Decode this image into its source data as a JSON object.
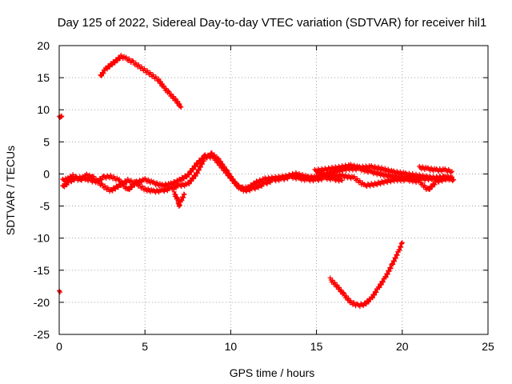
{
  "chart_data": {
    "type": "scatter",
    "title": "Day 125 of 2022, Sidereal Day-to-day VTEC variation (SDTVAR) for receiver hil1",
    "xlabel": "GPS time / hours",
    "ylabel": "SDTVAR / TECUs",
    "xlim": [
      0,
      25
    ],
    "ylim": [
      -25,
      20
    ],
    "xticks": [
      0,
      5,
      10,
      15,
      20,
      25
    ],
    "yticks": [
      -25,
      -20,
      -15,
      -10,
      -5,
      0,
      5,
      10,
      15,
      20
    ],
    "grid": true,
    "marker": "+",
    "color": "#ff0000",
    "series": [
      {
        "name": "arc-early-isolated",
        "points": [
          [
            0.0,
            8.8
          ],
          [
            0.1,
            8.8
          ],
          [
            0.15,
            9.0
          ]
        ]
      },
      {
        "name": "arc-isolated-low",
        "points": [
          [
            0.0,
            -18.4
          ],
          [
            0.05,
            -18.4
          ]
        ]
      },
      {
        "name": "arc-high",
        "points": [
          [
            2.4,
            15.2
          ],
          [
            2.7,
            16.3
          ],
          [
            3.0,
            17.0
          ],
          [
            3.3,
            17.6
          ],
          [
            3.6,
            18.3
          ],
          [
            3.9,
            18.0
          ],
          [
            4.3,
            17.4
          ],
          [
            4.8,
            16.5
          ],
          [
            5.3,
            15.6
          ],
          [
            5.8,
            14.6
          ],
          [
            6.1,
            13.5
          ],
          [
            6.4,
            12.6
          ],
          [
            6.8,
            11.5
          ],
          [
            7.1,
            10.4
          ]
        ]
      },
      {
        "name": "arc-main-1",
        "points": [
          [
            0.2,
            -1.0
          ],
          [
            0.5,
            -0.8
          ],
          [
            0.8,
            -0.3
          ],
          [
            1.2,
            -1.0
          ],
          [
            1.6,
            -0.2
          ],
          [
            2.0,
            -0.6
          ],
          [
            2.5,
            -1.8
          ],
          [
            3.0,
            -2.6
          ],
          [
            3.5,
            -1.8
          ],
          [
            4.0,
            -1.0
          ],
          [
            4.5,
            -1.5
          ],
          [
            5.0,
            -2.4
          ],
          [
            5.5,
            -2.7
          ],
          [
            6.0,
            -2.6
          ],
          [
            6.5,
            -2.3
          ],
          [
            7.0,
            -1.8
          ],
          [
            7.5,
            -1.6
          ],
          [
            8.0,
            0.0
          ],
          [
            8.5,
            2.5
          ],
          [
            8.9,
            3.1
          ],
          [
            9.3,
            2.2
          ],
          [
            9.8,
            0.3
          ],
          [
            10.3,
            -1.6
          ],
          [
            10.8,
            -2.6
          ],
          [
            11.3,
            -2.3
          ],
          [
            12.0,
            -1.5
          ],
          [
            12.5,
            -0.9
          ],
          [
            13.0,
            -0.8
          ],
          [
            13.5,
            -0.4
          ],
          [
            14.0,
            -0.7
          ],
          [
            14.5,
            -0.9
          ],
          [
            15.0,
            -0.9
          ],
          [
            15.5,
            -0.6
          ],
          [
            16.0,
            -0.8
          ],
          [
            16.5,
            -1.0
          ]
        ]
      },
      {
        "name": "arc-main-2",
        "points": [
          [
            0.2,
            -2.0
          ],
          [
            0.6,
            -1.2
          ],
          [
            1.0,
            -0.6
          ],
          [
            1.4,
            -0.6
          ],
          [
            1.8,
            -1.0
          ],
          [
            2.2,
            -1.2
          ],
          [
            2.6,
            -0.5
          ],
          [
            3.0,
            -0.4
          ],
          [
            3.5,
            -1.0
          ],
          [
            4.0,
            -2.5
          ],
          [
            4.5,
            -1.3
          ],
          [
            5.0,
            -0.9
          ],
          [
            5.5,
            -1.4
          ],
          [
            6.0,
            -1.8
          ],
          [
            6.5,
            -1.6
          ],
          [
            7.0,
            -1.0
          ],
          [
            7.5,
            -0.2
          ],
          [
            8.0,
            1.5
          ],
          [
            8.5,
            2.8
          ],
          [
            9.0,
            2.6
          ],
          [
            9.5,
            1.0
          ],
          [
            10.0,
            -0.6
          ],
          [
            10.5,
            -2.2
          ],
          [
            11.0,
            -2.2
          ],
          [
            11.5,
            -1.3
          ],
          [
            12.0,
            -0.8
          ],
          [
            12.6,
            -0.6
          ],
          [
            13.2,
            -0.4
          ],
          [
            13.8,
            0.0
          ],
          [
            14.5,
            -0.5
          ],
          [
            15.0,
            -0.5
          ],
          [
            15.6,
            0.0
          ],
          [
            16.2,
            0.5
          ],
          [
            16.8,
            0.8
          ],
          [
            17.5,
            0.8
          ],
          [
            18.2,
            0.3
          ],
          [
            19.0,
            -0.2
          ],
          [
            19.8,
            -0.5
          ],
          [
            20.5,
            -0.7
          ],
          [
            21.2,
            -0.8
          ],
          [
            22.0,
            -0.7
          ],
          [
            22.9,
            -0.5
          ]
        ]
      },
      {
        "name": "arc-late-1",
        "points": [
          [
            14.9,
            0.5
          ],
          [
            15.5,
            0.7
          ],
          [
            16.3,
            1.0
          ],
          [
            17.0,
            1.3
          ],
          [
            17.5,
            1.0
          ],
          [
            18.2,
            1.1
          ],
          [
            18.8,
            0.8
          ],
          [
            19.5,
            0.3
          ],
          [
            20.2,
            0.0
          ],
          [
            21.0,
            -0.3
          ],
          [
            21.8,
            -0.6
          ],
          [
            22.5,
            -0.5
          ],
          [
            22.9,
            -0.7
          ]
        ]
      },
      {
        "name": "arc-late-2",
        "points": [
          [
            15.0,
            0.2
          ],
          [
            15.8,
            -0.2
          ],
          [
            16.5,
            -0.3
          ],
          [
            17.2,
            -0.6
          ],
          [
            17.8,
            -1.8
          ],
          [
            18.4,
            -1.6
          ],
          [
            19.0,
            -1.2
          ],
          [
            19.6,
            -0.9
          ],
          [
            20.3,
            -0.9
          ],
          [
            21.0,
            -1.2
          ],
          [
            21.5,
            -2.5
          ],
          [
            22.0,
            -1.2
          ],
          [
            22.6,
            -0.7
          ],
          [
            23.0,
            -0.9
          ]
        ]
      },
      {
        "name": "arc-late-3",
        "points": [
          [
            21.0,
            1.0
          ],
          [
            21.5,
            0.8
          ],
          [
            22.0,
            0.6
          ],
          [
            22.5,
            0.6
          ],
          [
            22.9,
            0.4
          ]
        ]
      },
      {
        "name": "arc-dip",
        "points": [
          [
            6.7,
            -3.0
          ],
          [
            6.9,
            -4.0
          ],
          [
            7.0,
            -5.0
          ],
          [
            7.1,
            -4.2
          ],
          [
            7.3,
            -3.2
          ]
        ]
      },
      {
        "name": "arc-low",
        "points": [
          [
            15.8,
            -16.4
          ],
          [
            16.2,
            -17.5
          ],
          [
            16.6,
            -18.8
          ],
          [
            17.0,
            -20.0
          ],
          [
            17.4,
            -20.5
          ],
          [
            17.8,
            -20.3
          ],
          [
            18.2,
            -19.4
          ],
          [
            18.6,
            -17.8
          ],
          [
            19.0,
            -16.2
          ],
          [
            19.4,
            -14.2
          ],
          [
            19.8,
            -12.0
          ],
          [
            20.0,
            -10.7
          ]
        ]
      }
    ]
  }
}
